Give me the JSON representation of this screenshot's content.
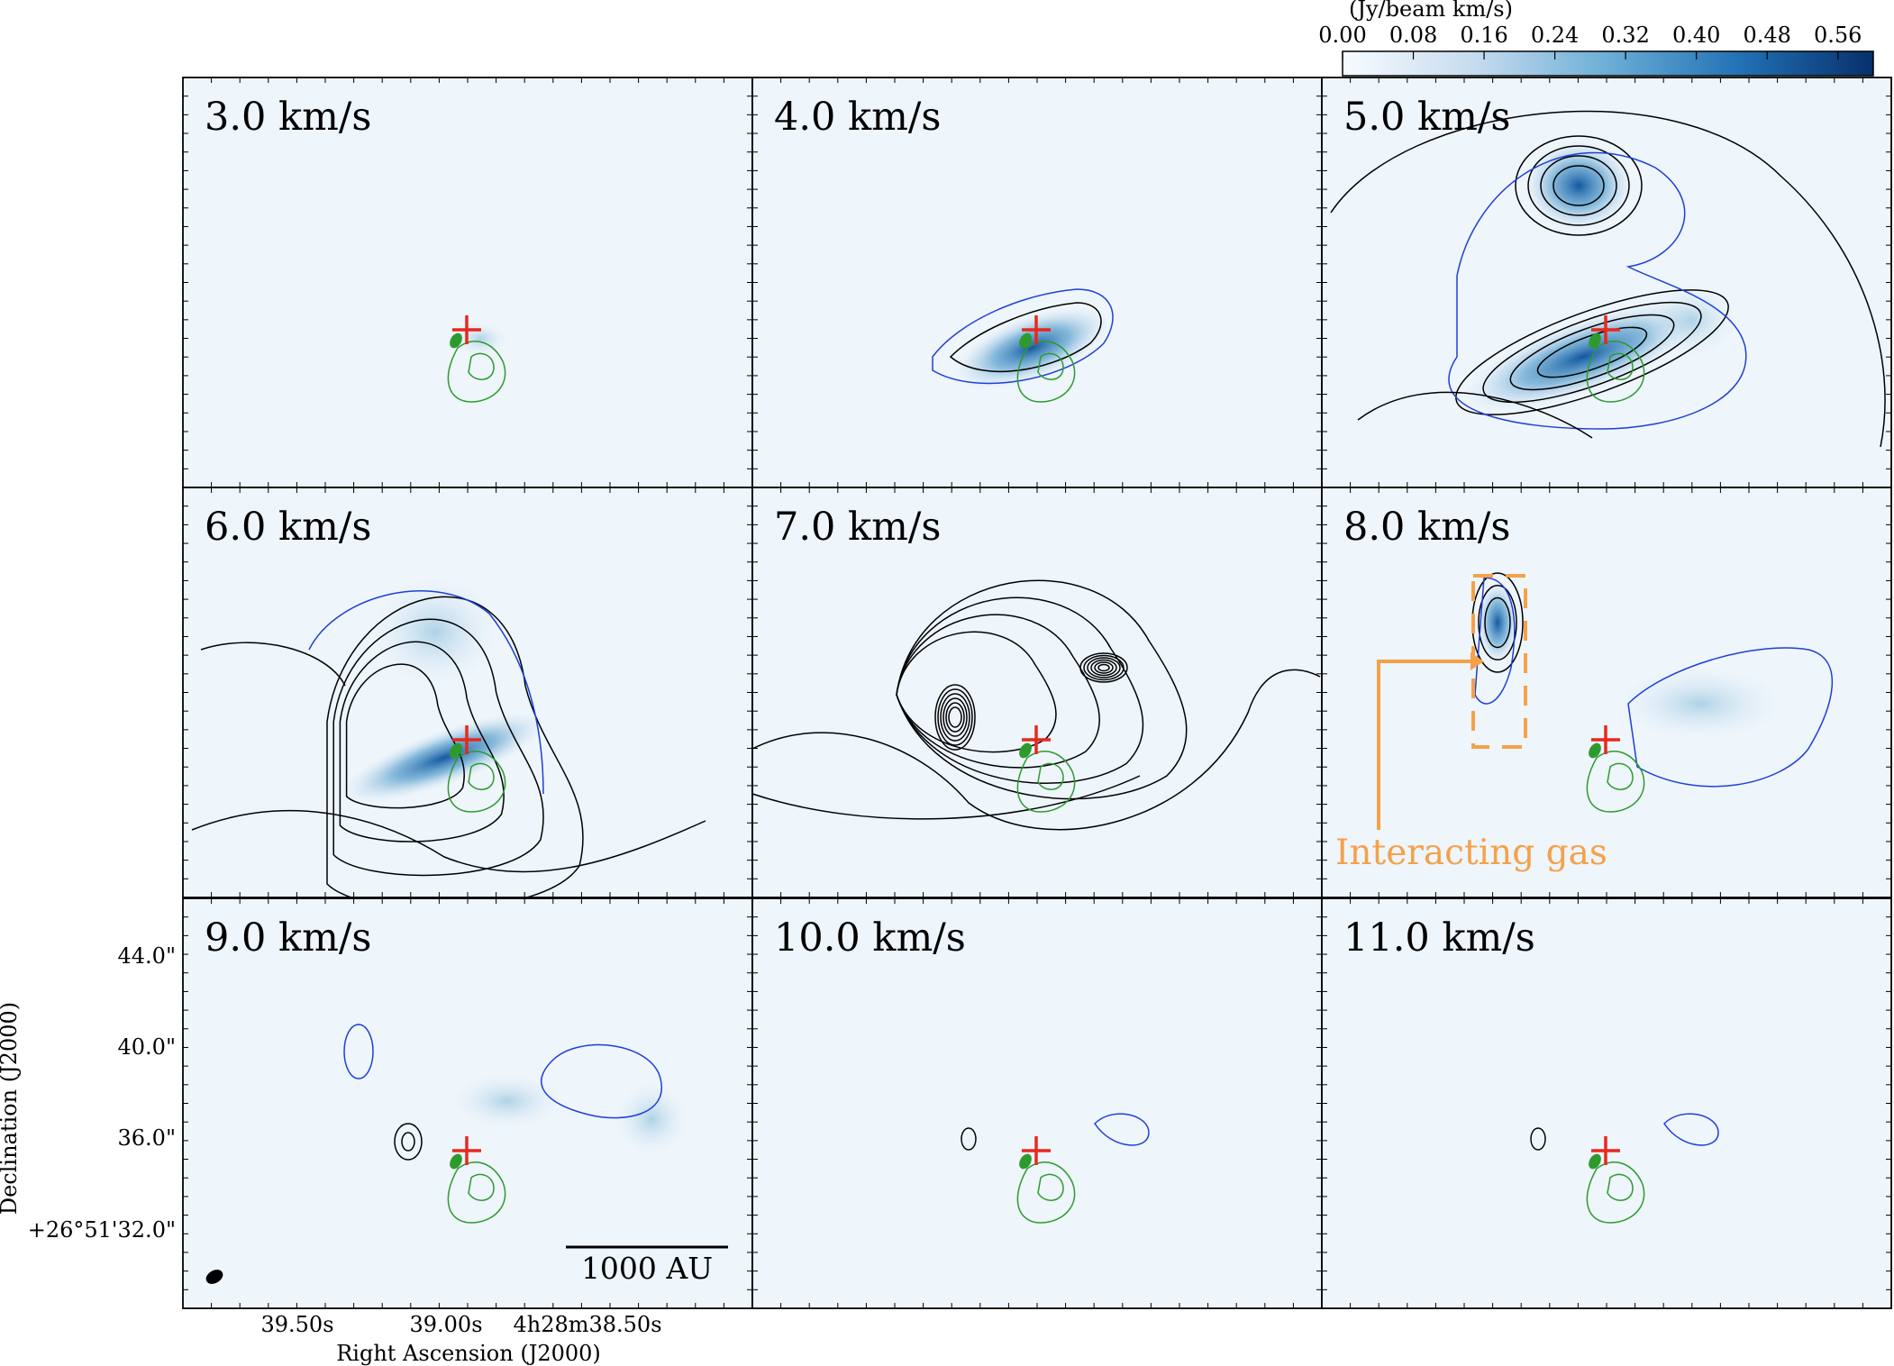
{
  "colorbar": {
    "label": "(Jy/beam km/s)",
    "ticks": [
      "0.00",
      "0.08",
      "0.16",
      "0.24",
      "0.32",
      "0.40",
      "0.48",
      "0.56"
    ],
    "cmap_low": "#f7fbff",
    "cmap_high": "#08306b"
  },
  "panels": [
    {
      "label": "3.0 km/s"
    },
    {
      "label": "4.0 km/s"
    },
    {
      "label": "5.0 km/s"
    },
    {
      "label": "6.0 km/s"
    },
    {
      "label": "7.0 km/s"
    },
    {
      "label": "8.0 km/s"
    },
    {
      "label": "9.0 km/s"
    },
    {
      "label": "10.0 km/s"
    },
    {
      "label": "11.0 km/s"
    }
  ],
  "axes": {
    "xlabel": "Right Ascension (J2000)",
    "ylabel": "Declination (J2000)",
    "xticks": [
      "39.50s",
      "39.00s",
      "4h28m38.50s"
    ],
    "yticks": [
      "44.0\"",
      "40.0\"",
      "36.0\"",
      "+26°51'32.0\""
    ]
  },
  "annotation": {
    "text": "Interacting gas",
    "color": "#f4a14a"
  },
  "scalebar": {
    "text": "1000 AU"
  },
  "colors": {
    "contour_black": "#000000",
    "contour_blue": "#1f3fd6",
    "contour_green": "#2e9a2e",
    "marker_red": "#e8281e"
  }
}
